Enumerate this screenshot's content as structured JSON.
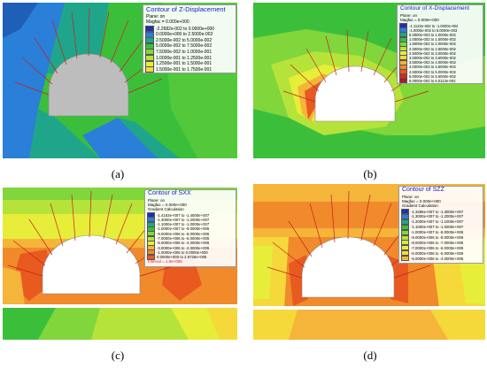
{
  "panels": [
    {
      "id": "a",
      "caption": "(a)",
      "legend": {
        "title": "Contour of Z-Displacement",
        "lines": [
          "Plane: on",
          "Magfac = 0.000e+000"
        ],
        "rows": [
          {
            "color": "#1f2fb0",
            "text": "-2.2682e-002 to 0.0000e+000"
          },
          {
            "color": "#2a7fd8",
            "text": "0.0000e+000 to 2.5000e-002"
          },
          {
            "color": "#1fa68a",
            "text": "2.5000e-002 to 5.0000e-002"
          },
          {
            "color": "#3bbf3b",
            "text": "5.0000e-002 to 7.5000e-002"
          },
          {
            "color": "#80d63a",
            "text": "7.5000e-002 to 1.0000e-001"
          },
          {
            "color": "#b6e33a",
            "text": "1.0000e-001 to 1.2500e-001"
          },
          {
            "color": "#e6ee3a",
            "text": "1.2500e-001 to 1.5000e-001"
          },
          {
            "color": "#f5d93a",
            "text": "1.5000e-001 to 1.7500e-001"
          }
        ],
        "footer": ""
      }
    },
    {
      "id": "b",
      "caption": "(b)",
      "legend": {
        "title": "Contour of X-Displacement",
        "lines": [
          "Plane: on",
          "Magfac = 0.000e+000"
        ],
        "rows": [
          {
            "color": "#1f2fb0",
            "text": "-1.1122e-002 to -1.0000e-002"
          },
          {
            "color": "#2a7fd8",
            "text": "-1.0000e-002 to 5.0000e-003"
          },
          {
            "color": "#1fa68a",
            "text": "5.0000e-003 to 1.0000e-002"
          },
          {
            "color": "#3bbf3b",
            "text": "1.0000e-002 to 1.5000e-002"
          },
          {
            "color": "#80d63a",
            "text": "1.5000e-002 to 2.0000e-002"
          },
          {
            "color": "#b6e33a",
            "text": "2.0000e-002 to 2.5000e-002"
          },
          {
            "color": "#e6ee3a",
            "text": "2.5000e-002 to 3.0000e-002"
          },
          {
            "color": "#f5d93a",
            "text": "3.0000e-002 to 3.5000e-002"
          },
          {
            "color": "#f5b43a",
            "text": "3.5000e-002 to 4.0000e-002"
          },
          {
            "color": "#f08a2a",
            "text": "4.0000e-002 to 4.5000e-002"
          },
          {
            "color": "#e85a1f",
            "text": "4.5000e-002 to 5.0000e-002"
          },
          {
            "color": "#d42a1a",
            "text": "5.0000e-002 to 5.5000e-002"
          },
          {
            "color": "#b01818",
            "text": "6.0000e-002 to 6.0113e-002"
          }
        ],
        "footer": ""
      }
    },
    {
      "id": "c",
      "caption": "(c)",
      "legend": {
        "title": "Contour of SXX",
        "lines": [
          "Plane: on",
          "Magfac = 0.000e+000",
          "Gradient Calculation"
        ],
        "rows": [
          {
            "color": "#1f2fb0",
            "text": "-1.4163e+007 to -1.4000e+007"
          },
          {
            "color": "#2a7fd8",
            "text": "-1.3000e+007 to -1.2000e+007"
          },
          {
            "color": "#1fa68a",
            "text": "-1.1000e+007 to -1.0000e+007"
          },
          {
            "color": "#3bbf3b",
            "text": "-1.0000e+007 to -9.0000e+006"
          },
          {
            "color": "#80d63a",
            "text": "-9.0000e+006 to -8.0000e+006"
          },
          {
            "color": "#b6e33a",
            "text": "-7.0000e+006 to -6.0000e+006"
          },
          {
            "color": "#e6ee3a",
            "text": "-5.0000e+006 to -4.0000e+006"
          },
          {
            "color": "#f5b43a",
            "text": "-3.0000e+006 to -2.0000e+006"
          },
          {
            "color": "#f08a2a",
            "text": "-1.0000e+006 to 0.0000e+000"
          },
          {
            "color": "#e85a1f",
            "text": "0.0000e+000 to 2.6726e+005"
          }
        ],
        "footer": "Interval = 1.0e+006"
      }
    },
    {
      "id": "d",
      "caption": "(d)",
      "legend": {
        "title": "Contour of SZZ",
        "lines": [
          "Plane: on",
          "Magfac = 0.000e+000",
          "Gradient Calculation"
        ],
        "rows": [
          {
            "color": "#1f2fb0",
            "text": "-1.3286e+007 to -1.3000e+007"
          },
          {
            "color": "#2a7fd8",
            "text": "-1.3000e+007 to -1.2000e+007"
          },
          {
            "color": "#1fa68a",
            "text": "-1.2000e+007 to -1.1000e+007"
          },
          {
            "color": "#3bbf3b",
            "text": "-1.1000e+007 to -1.0000e+007"
          },
          {
            "color": "#80d63a",
            "text": "-1.0000e+007 to -9.0000e+006"
          },
          {
            "color": "#b6e33a",
            "text": "-9.0000e+006 to -8.0000e+006"
          },
          {
            "color": "#d4ea3a",
            "text": "-8.0000e+006 to -7.0000e+006"
          },
          {
            "color": "#e6ee3a",
            "text": "-7.0000e+006 to -6.0000e+006"
          },
          {
            "color": "#f5d93a",
            "text": "-6.0000e+006 to -5.0000e+006"
          },
          {
            "color": "#f5b43a",
            "text": "-5.0000e+006 to -4.0000e+006"
          }
        ],
        "footer": ""
      }
    }
  ],
  "colors": {
    "blue": "#2a7fd8",
    "teal": "#1fa68a",
    "green": "#3bbf3b",
    "yellow_green": "#b6e33a",
    "yellow": "#e6ee3a",
    "orange": "#f08a2a",
    "red_orange": "#e85a1f",
    "excavation_gray": "#bdbdbd",
    "bolt_red": "#c82020"
  }
}
